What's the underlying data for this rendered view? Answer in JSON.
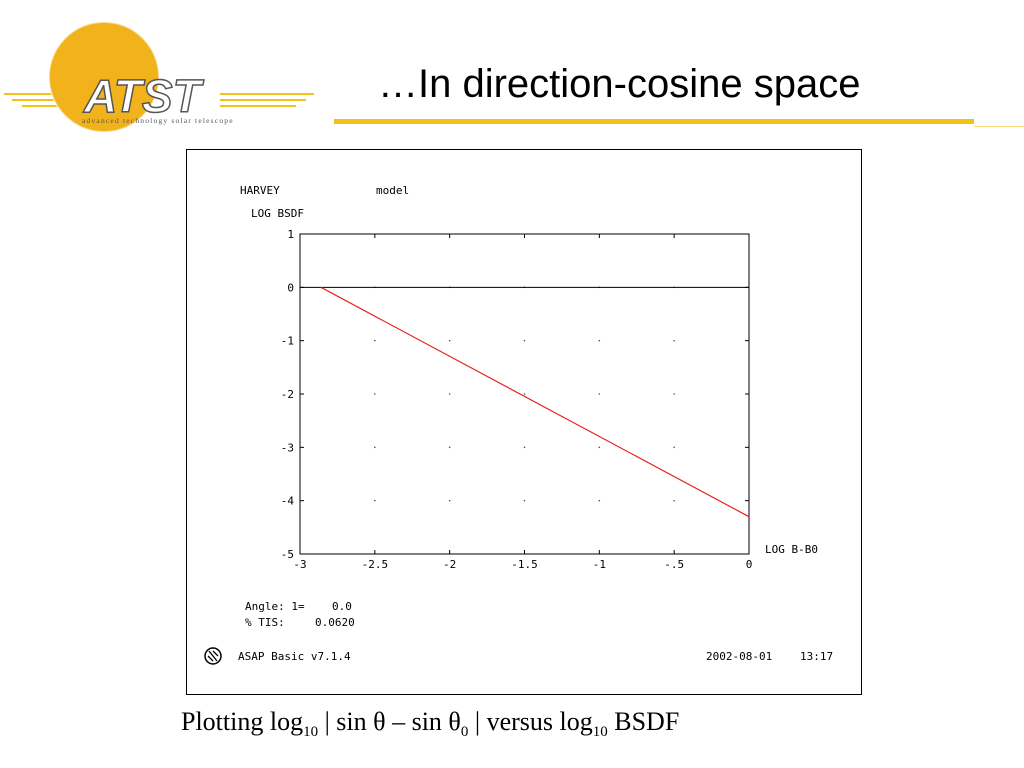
{
  "slide": {
    "title": "…In direction-cosine space",
    "logo_text": "ATST",
    "logo_tagline": "advanced technology solar telescope",
    "accent_color": "#f2c21b"
  },
  "caption": {
    "p1": "Plotting log",
    "sub1": "10",
    "p2": " | sin θ – sin θ",
    "sub2": "0",
    "p3": " | versus log",
    "sub3": "10",
    "p4": " BSDF"
  },
  "plot_text": {
    "header_left": "HARVEY",
    "header_model": "model",
    "angle_label": "Angle: 1=",
    "angle_value": "0.0",
    "tis_label": "% TIS:",
    "tis_value": "0.0620",
    "software": "ASAP Basic v7.1.4",
    "date": "2002-08-01",
    "time": "13:17"
  },
  "chart_data": {
    "type": "line",
    "ylabel": "LOG BSDF",
    "xlabel": "LOG B-B0",
    "xlim": [
      -3,
      0
    ],
    "ylim": [
      -5,
      1
    ],
    "x_ticks": [
      -3,
      -2.5,
      -2,
      -1.5,
      -1,
      -0.5,
      0
    ],
    "x_tick_labels": [
      "-3",
      "-2.5",
      "-2",
      "-1.5",
      "-1",
      "-.5",
      "0"
    ],
    "y_ticks": [
      1,
      0,
      -1,
      -2,
      -3,
      -4,
      -5
    ],
    "y_tick_labels": [
      "1",
      "0",
      "-1",
      "-2",
      "-3",
      "-4",
      "-5"
    ],
    "grid": "dotted",
    "reference_line_y": 0,
    "series": [
      {
        "color": "#e8231e",
        "x": [
          -2.86,
          0
        ],
        "y": [
          0,
          -4.3
        ]
      }
    ]
  }
}
